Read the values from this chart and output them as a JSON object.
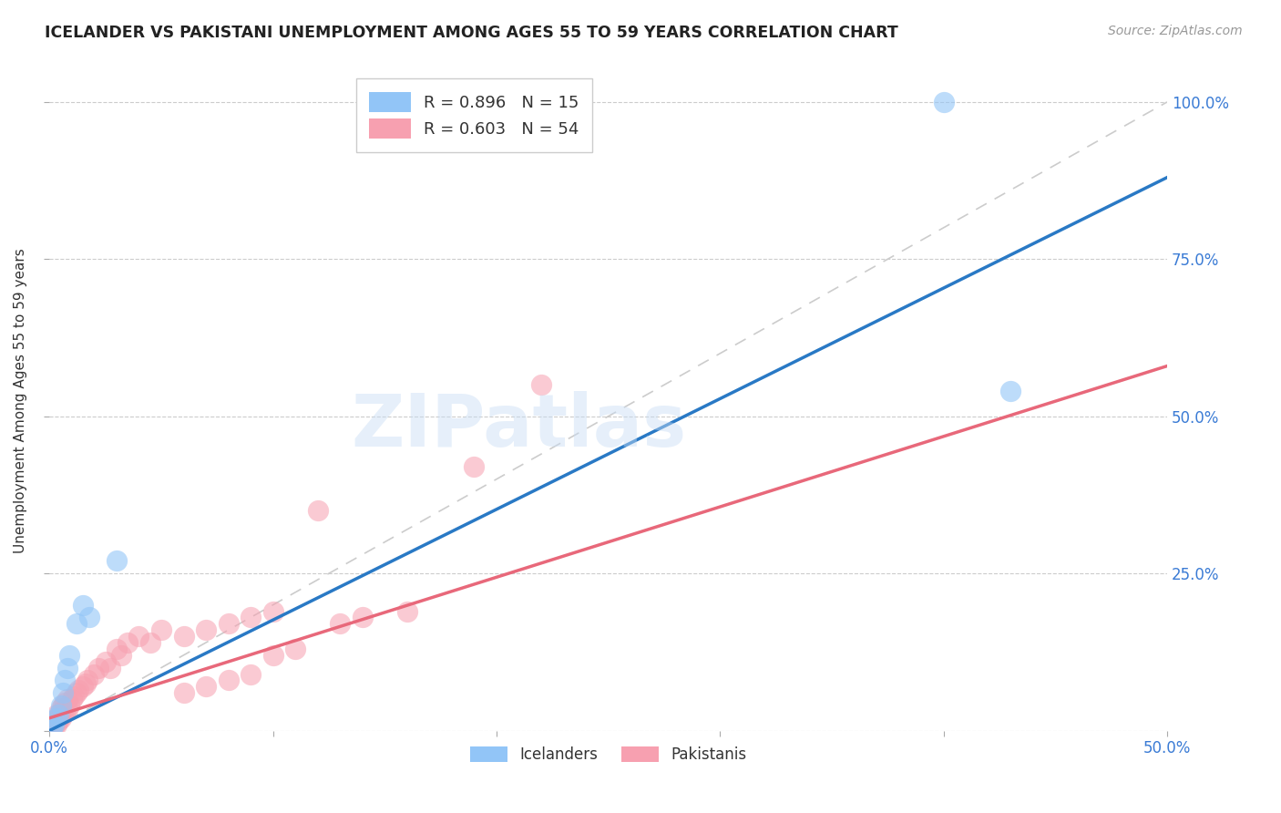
{
  "title": "ICELANDER VS PAKISTANI UNEMPLOYMENT AMONG AGES 55 TO 59 YEARS CORRELATION CHART",
  "source": "Source: ZipAtlas.com",
  "ylabel": "Unemployment Among Ages 55 to 59 years",
  "xlim": [
    0,
    0.5
  ],
  "ylim": [
    0,
    1.05
  ],
  "xticks": [
    0.0,
    0.1,
    0.2,
    0.3,
    0.4,
    0.5
  ],
  "yticks": [
    0.0,
    0.25,
    0.5,
    0.75,
    1.0
  ],
  "xtick_labels_visible": [
    "0.0%",
    "",
    "",
    "",
    "",
    "50.0%"
  ],
  "ytick_labels_right": [
    "",
    "25.0%",
    "50.0%",
    "75.0%",
    "100.0%"
  ],
  "icelander_color": "#92c5f7",
  "pakistani_color": "#f7a0b0",
  "icelander_R": 0.896,
  "icelander_N": 15,
  "pakistani_R": 0.603,
  "pakistani_N": 54,
  "regression_blue_color": "#2979c5",
  "regression_pink_color": "#e8687a",
  "diag_color": "#cccccc",
  "watermark": "ZIPatlas",
  "watermark_color": "#c5d8f0",
  "legend_label_blue": "R = 0.896   N = 15",
  "legend_label_pink": "R = 0.603   N = 54",
  "icelander_x": [
    0.001,
    0.002,
    0.003,
    0.004,
    0.005,
    0.006,
    0.007,
    0.008,
    0.009,
    0.012,
    0.015,
    0.018,
    0.03,
    0.4,
    0.43
  ],
  "icelander_y": [
    0.005,
    0.01,
    0.02,
    0.025,
    0.04,
    0.06,
    0.08,
    0.1,
    0.12,
    0.17,
    0.2,
    0.18,
    0.27,
    1.0,
    0.54
  ],
  "pakistani_x": [
    0.0,
    0.001,
    0.001,
    0.002,
    0.002,
    0.003,
    0.003,
    0.003,
    0.004,
    0.004,
    0.005,
    0.005,
    0.005,
    0.006,
    0.006,
    0.007,
    0.007,
    0.008,
    0.008,
    0.009,
    0.01,
    0.011,
    0.012,
    0.013,
    0.015,
    0.016,
    0.017,
    0.02,
    0.022,
    0.025,
    0.027,
    0.03,
    0.032,
    0.035,
    0.04,
    0.045,
    0.05,
    0.06,
    0.07,
    0.08,
    0.09,
    0.1,
    0.12,
    0.13,
    0.14,
    0.16,
    0.19,
    0.22,
    0.1,
    0.11,
    0.08,
    0.09,
    0.07,
    0.06
  ],
  "pakistani_y": [
    0.0,
    0.005,
    0.01,
    0.005,
    0.015,
    0.01,
    0.02,
    0.025,
    0.015,
    0.02,
    0.02,
    0.03,
    0.035,
    0.025,
    0.04,
    0.03,
    0.045,
    0.035,
    0.05,
    0.04,
    0.05,
    0.055,
    0.06,
    0.065,
    0.07,
    0.075,
    0.08,
    0.09,
    0.1,
    0.11,
    0.1,
    0.13,
    0.12,
    0.14,
    0.15,
    0.14,
    0.16,
    0.15,
    0.16,
    0.17,
    0.18,
    0.19,
    0.35,
    0.17,
    0.18,
    0.19,
    0.42,
    0.55,
    0.12,
    0.13,
    0.08,
    0.09,
    0.07,
    0.06
  ],
  "blue_line_x": [
    0.0,
    0.5
  ],
  "blue_line_y": [
    0.0,
    0.88
  ],
  "pink_line_x": [
    0.0,
    0.5
  ],
  "pink_line_y": [
    0.02,
    0.58
  ]
}
